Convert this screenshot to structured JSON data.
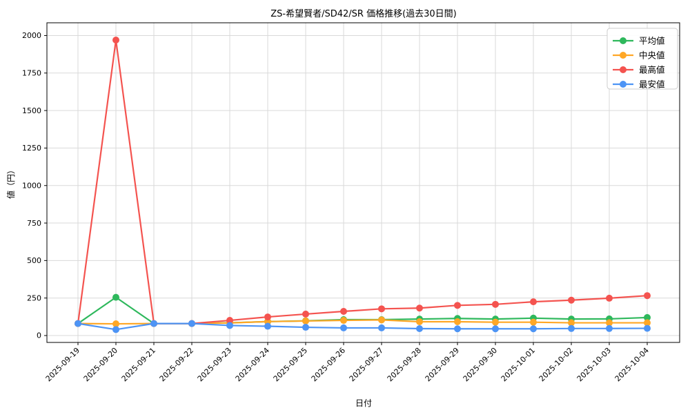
{
  "chart_data": {
    "type": "line",
    "title": "ZS-希望賢者/SD42/SR 価格推移(過去30日間)",
    "xlabel": "日付",
    "ylabel": "値（円）",
    "grid": true,
    "legend_position": "upper right",
    "x": [
      "2025-09-19",
      "2025-09-20",
      "2025-09-21",
      "2025-09-22",
      "2025-09-23",
      "2025-09-24",
      "2025-09-25",
      "2025-09-26",
      "2025-09-27",
      "2025-09-28",
      "2025-09-29",
      "2025-09-30",
      "2025-10-01",
      "2025-10-02",
      "2025-10-03",
      "2025-10-04"
    ],
    "yticks": [
      0,
      250,
      500,
      750,
      1000,
      1250,
      1500,
      1750,
      2000
    ],
    "ylim": [
      -46,
      2085
    ],
    "series": [
      {
        "key": "avg",
        "name": "平均値",
        "color": "#2eb85c",
        "values": [
          80,
          255,
          80,
          80,
          85,
          93,
          98,
          106,
          106,
          110,
          114,
          110,
          116,
          110,
          111,
          120
        ]
      },
      {
        "key": "median",
        "name": "中央値",
        "color": "#ffa726",
        "values": [
          80,
          78,
          80,
          80,
          84,
          93,
          97,
          101,
          104,
          92,
          92,
          89,
          89,
          85,
          85,
          85
        ]
      },
      {
        "key": "max",
        "name": "最高値",
        "color": "#f4534f",
        "values": [
          80,
          1970,
          80,
          80,
          101,
          124,
          143,
          161,
          178,
          183,
          201,
          208,
          225,
          236,
          249,
          266
        ]
      },
      {
        "key": "min",
        "name": "最安値",
        "color": "#4d94f5",
        "values": [
          80,
          40,
          80,
          80,
          67,
          62,
          55,
          51,
          51,
          46,
          45,
          45,
          45,
          47,
          47,
          48
        ]
      }
    ]
  },
  "colors": {
    "grid": "#d9d9d9",
    "spine": "#000000",
    "legend_border": "#cccccc",
    "background": "#ffffff"
  }
}
